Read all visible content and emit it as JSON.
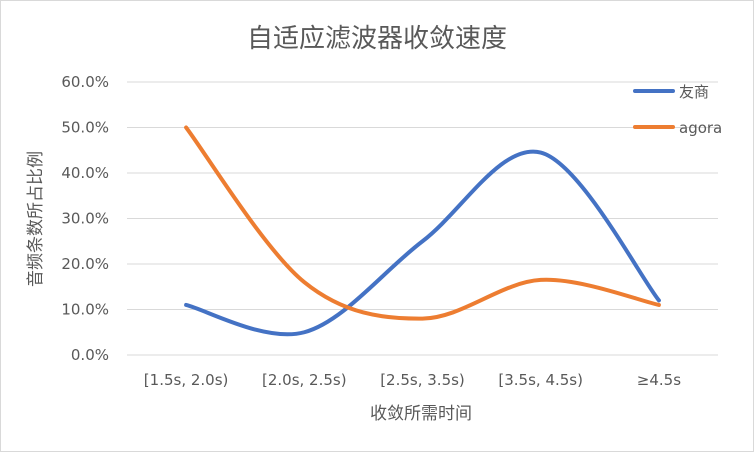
{
  "chart_data": {
    "type": "line",
    "title": "自适应滤波器收敛速度",
    "xlabel": "收敛所需时间",
    "ylabel": "音频条数所占比例",
    "categories": [
      "[1.5s, 2.0s)",
      "[2.0s, 2.5s)",
      "[2.5s, 3.5s)",
      "[3.5s, 4.5s)",
      "≥4.5s"
    ],
    "ylim": [
      0,
      60
    ],
    "yticks": [
      "0.0%",
      "10.0%",
      "20.0%",
      "30.0%",
      "40.0%",
      "50.0%",
      "60.0%"
    ],
    "grid": true,
    "smooth": true,
    "legend_position": "top-right",
    "series": [
      {
        "name": "友商",
        "color": "#4472C4",
        "values": [
          11,
          5,
          25,
          44.5,
          12
        ]
      },
      {
        "name": "agora",
        "color": "#ED7D31",
        "values": [
          50,
          16,
          8,
          16.5,
          11
        ]
      }
    ]
  }
}
